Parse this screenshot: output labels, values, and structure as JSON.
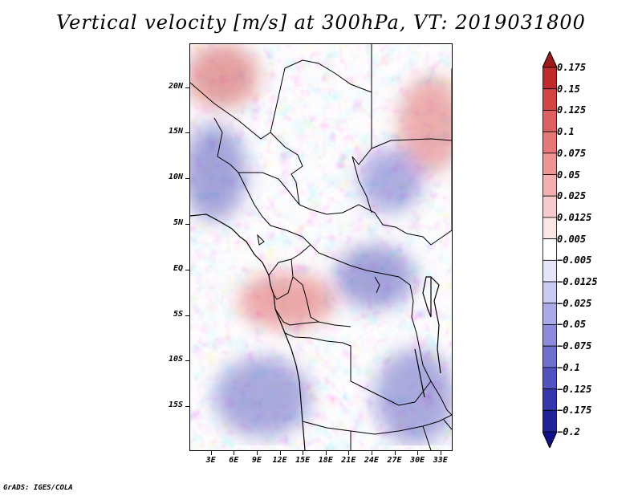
{
  "title": "Vertical velocity [m/s] at 300hPa, VT: 2019031800",
  "credit": "GrADS: IGES/COLA",
  "map": {
    "lat_labels": [
      "20N",
      "15N",
      "10N",
      "5N",
      "EQ",
      "5S",
      "10S",
      "15S"
    ],
    "lon_labels": [
      "3E",
      "6E",
      "9E",
      "12E",
      "15E",
      "18E",
      "21E",
      "24E",
      "27E",
      "30E",
      "33E"
    ],
    "lat_values": [
      20,
      15,
      10,
      5,
      0,
      -5,
      -10,
      -15
    ],
    "lon_values": [
      3,
      6,
      9,
      12,
      15,
      18,
      21,
      24,
      27,
      30,
      33
    ],
    "lon_range": [
      0.2,
      34.6
    ],
    "lat_range": [
      -19.9,
      24.8
    ]
  },
  "colorbar": {
    "labels": [
      "0.175",
      "0.15",
      "0.125",
      "0.1",
      "0.075",
      "0.05",
      "0.025",
      "0.0125",
      "0.005",
      "−0.005",
      "−0.0125",
      "−0.025",
      "−0.05",
      "−0.075",
      "−0.1",
      "−0.125",
      "−0.175",
      "−0.2"
    ],
    "colors": [
      "#a01818",
      "#c02a2a",
      "#d44444",
      "#e06060",
      "#e87878",
      "#ef9494",
      "#f4b0b0",
      "#f8cccc",
      "#fbe6e6",
      "#ffffff",
      "#e6e6fa",
      "#cacaf2",
      "#aaaae8",
      "#8c8cdc",
      "#7070d0",
      "#5252c2",
      "#3636b0",
      "#22229c",
      "#10108a"
    ]
  }
}
